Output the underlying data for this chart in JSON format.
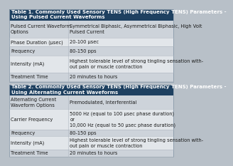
{
  "table1_title": "Table 1. Commonly Used Sensory TENS (High Frequency TENS) Parameters -\nUsing Pulsed Current Waveforms",
  "table1_rows": [
    [
      "Pulsed Current Waveform\nOptions",
      "Symmetrical Biphasic, Asymmetrical Biphasic, High Volt\nPulsed Current"
    ],
    [
      "Phase Duration (μsec)",
      "20-100 μsec"
    ],
    [
      "Frequency",
      "80-150 pps"
    ],
    [
      "Intensity (mA)",
      "Highest tolerable level of strong tingling sensation with-\nout pain or muscle contraction"
    ],
    [
      "Treatment Time",
      "20 minutes to hours"
    ]
  ],
  "table2_title": "Table 2. Commonly Used Sensory TENS (High Frequency TENS) Parameters -\nUsing Alternating Current Waveforms",
  "table2_rows": [
    [
      "Alternating Current\nWaveform Options",
      "Premodulated, Interferential"
    ],
    [
      "Carrier Frequency",
      "5000 Hz (equal to 100 μsec phase duration)\nor\n10,000 Hz (equal to 50 μsec phase duration)"
    ],
    [
      "Frequency",
      "80-150 pps"
    ],
    [
      "Intensity (mA)",
      "Highest tolerable level of strong tingling sensation with-\nout pain or muscle contraction"
    ],
    [
      "Treatment Time",
      "20 minutes to hours"
    ]
  ],
  "header_bg": "#1e4060",
  "header_text": "#ffffff",
  "row_bg_odd": "#cdd3da",
  "row_bg_even": "#e2e6ea",
  "border_color": "#b0b8c1",
  "outer_border": "#8a9aaa",
  "text_color": "#1a1a1a",
  "font_size": 4.8,
  "title_font_size": 5.0,
  "col_split": 0.36,
  "bg_color": "#b8c0c8"
}
